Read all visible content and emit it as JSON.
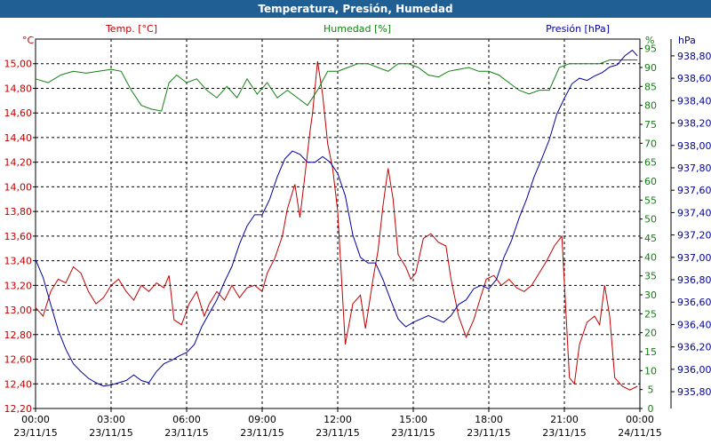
{
  "window_title": "Temperatura, Presión, Humedad",
  "colors": {
    "title_bar": "#1f5f94",
    "temperature": "#c00000",
    "humidity": "#108010",
    "pressure": "#0000a0"
  },
  "chart_data": {
    "type": "line",
    "title": "Temperatura, Presión, Humedad",
    "grid": true,
    "grid_style": "dashed",
    "x_ticks": [
      {
        "time": "00:00",
        "date": "23/11/15"
      },
      {
        "time": "03:00",
        "date": "23/11/15"
      },
      {
        "time": "06:00",
        "date": "23/11/15"
      },
      {
        "time": "09:00",
        "date": "23/11/15"
      },
      {
        "time": "12:00",
        "date": "23/11/15"
      },
      {
        "time": "15:00",
        "date": "23/11/15"
      },
      {
        "time": "18:00",
        "date": "23/11/15"
      },
      {
        "time": "21:00",
        "date": "23/11/15"
      },
      {
        "time": "00:00",
        "date": "24/11/15"
      }
    ],
    "x_range_hours": [
      0,
      24
    ],
    "axes": {
      "left": {
        "unit": "°C",
        "range": [
          12.2,
          15.2
        ],
        "ticks": [
          "12,20",
          "12,40",
          "12,60",
          "12,80",
          "13,00",
          "13,20",
          "13,40",
          "13,60",
          "13,80",
          "14,00",
          "14,20",
          "14,40",
          "14,60",
          "14,80",
          "15,00"
        ]
      },
      "right1": {
        "unit": "%",
        "range": [
          0,
          97.5
        ],
        "ticks": [
          "0",
          "5",
          "10",
          "15",
          "20",
          "25",
          "30",
          "35",
          "40",
          "45",
          "50",
          "55",
          "60",
          "65",
          "70",
          "75",
          "80",
          "85",
          "90",
          "95"
        ]
      },
      "right2": {
        "unit": "hPa",
        "range": [
          935.65,
          938.95
        ],
        "ticks": [
          "935,80",
          "936,00",
          "936,20",
          "936,40",
          "936,60",
          "936,80",
          "937,00",
          "937,20",
          "937,40",
          "937,60",
          "937,80",
          "938,00",
          "938,20",
          "938,40",
          "938,60",
          "938,80"
        ]
      }
    },
    "series": [
      {
        "name": "Temp. [°C]",
        "axis": "left",
        "color": "#c00000",
        "points": [
          [
            0,
            13.02
          ],
          [
            0.3,
            12.95
          ],
          [
            0.6,
            13.15
          ],
          [
            0.9,
            13.25
          ],
          [
            1.2,
            13.22
          ],
          [
            1.5,
            13.35
          ],
          [
            1.8,
            13.3
          ],
          [
            2.1,
            13.15
          ],
          [
            2.4,
            13.05
          ],
          [
            2.7,
            13.1
          ],
          [
            3.0,
            13.2
          ],
          [
            3.3,
            13.25
          ],
          [
            3.6,
            13.15
          ],
          [
            3.9,
            13.08
          ],
          [
            4.2,
            13.2
          ],
          [
            4.5,
            13.15
          ],
          [
            4.8,
            13.22
          ],
          [
            5.1,
            13.18
          ],
          [
            5.3,
            13.28
          ],
          [
            5.5,
            12.92
          ],
          [
            5.8,
            12.88
          ],
          [
            6.1,
            13.05
          ],
          [
            6.4,
            13.15
          ],
          [
            6.7,
            12.95
          ],
          [
            6.9,
            13.05
          ],
          [
            7.2,
            13.15
          ],
          [
            7.5,
            13.08
          ],
          [
            7.8,
            13.2
          ],
          [
            8.1,
            13.1
          ],
          [
            8.4,
            13.18
          ],
          [
            8.7,
            13.2
          ],
          [
            9.0,
            13.15
          ],
          [
            9.2,
            13.3
          ],
          [
            9.5,
            13.42
          ],
          [
            9.8,
            13.6
          ],
          [
            10.0,
            13.82
          ],
          [
            10.3,
            14.02
          ],
          [
            10.5,
            13.75
          ],
          [
            10.7,
            14.1
          ],
          [
            10.9,
            14.45
          ],
          [
            11.0,
            14.6
          ],
          [
            11.2,
            15.02
          ],
          [
            11.4,
            14.75
          ],
          [
            11.6,
            14.35
          ],
          [
            11.8,
            14.15
          ],
          [
            12.0,
            13.8
          ],
          [
            12.3,
            12.72
          ],
          [
            12.6,
            13.05
          ],
          [
            12.9,
            13.12
          ],
          [
            13.1,
            12.85
          ],
          [
            13.4,
            13.25
          ],
          [
            13.6,
            13.48
          ],
          [
            13.8,
            13.85
          ],
          [
            14.0,
            14.15
          ],
          [
            14.2,
            13.9
          ],
          [
            14.4,
            13.45
          ],
          [
            14.7,
            13.35
          ],
          [
            14.9,
            13.25
          ],
          [
            15.1,
            13.3
          ],
          [
            15.4,
            13.58
          ],
          [
            15.7,
            13.62
          ],
          [
            16.0,
            13.55
          ],
          [
            16.3,
            13.52
          ],
          [
            16.5,
            13.25
          ],
          [
            16.8,
            12.95
          ],
          [
            17.1,
            12.78
          ],
          [
            17.4,
            12.92
          ],
          [
            17.7,
            13.12
          ],
          [
            17.9,
            13.25
          ],
          [
            18.2,
            13.28
          ],
          [
            18.5,
            13.2
          ],
          [
            18.8,
            13.25
          ],
          [
            19.1,
            13.18
          ],
          [
            19.4,
            13.15
          ],
          [
            19.7,
            13.2
          ],
          [
            20.0,
            13.3
          ],
          [
            20.3,
            13.4
          ],
          [
            20.6,
            13.52
          ],
          [
            20.9,
            13.6
          ],
          [
            21.2,
            12.45
          ],
          [
            21.4,
            12.4
          ],
          [
            21.6,
            12.72
          ],
          [
            21.9,
            12.9
          ],
          [
            22.2,
            12.95
          ],
          [
            22.4,
            12.88
          ],
          [
            22.6,
            13.2
          ],
          [
            22.8,
            12.95
          ],
          [
            23.0,
            12.45
          ],
          [
            23.3,
            12.38
          ],
          [
            23.6,
            12.35
          ],
          [
            23.9,
            12.38
          ]
        ]
      },
      {
        "name": "Humedad [%]",
        "axis": "right1",
        "color": "#108010",
        "points": [
          [
            0,
            87
          ],
          [
            0.5,
            86
          ],
          [
            1.0,
            88
          ],
          [
            1.5,
            89
          ],
          [
            2.0,
            88.5
          ],
          [
            2.5,
            89
          ],
          [
            3.0,
            89.5
          ],
          [
            3.4,
            89
          ],
          [
            3.8,
            84
          ],
          [
            4.2,
            80
          ],
          [
            4.6,
            79
          ],
          [
            5.0,
            78.5
          ],
          [
            5.3,
            86
          ],
          [
            5.6,
            88
          ],
          [
            6.0,
            86
          ],
          [
            6.4,
            87
          ],
          [
            6.8,
            84
          ],
          [
            7.2,
            82
          ],
          [
            7.6,
            85
          ],
          [
            8.0,
            82
          ],
          [
            8.4,
            87
          ],
          [
            8.8,
            83
          ],
          [
            9.2,
            86
          ],
          [
            9.6,
            82
          ],
          [
            10.0,
            84
          ],
          [
            10.4,
            82
          ],
          [
            10.8,
            80
          ],
          [
            11.2,
            84
          ],
          [
            11.6,
            89
          ],
          [
            12.0,
            89
          ],
          [
            12.4,
            90
          ],
          [
            12.8,
            91
          ],
          [
            13.2,
            91
          ],
          [
            13.6,
            90
          ],
          [
            14.0,
            89
          ],
          [
            14.4,
            91
          ],
          [
            14.8,
            91
          ],
          [
            15.2,
            90
          ],
          [
            15.6,
            88
          ],
          [
            16.0,
            87.5
          ],
          [
            16.4,
            89
          ],
          [
            16.8,
            89.5
          ],
          [
            17.2,
            90
          ],
          [
            17.6,
            89
          ],
          [
            18.0,
            89
          ],
          [
            18.4,
            88
          ],
          [
            18.8,
            86
          ],
          [
            19.2,
            84
          ],
          [
            19.6,
            83
          ],
          [
            20.0,
            84
          ],
          [
            20.4,
            84
          ],
          [
            20.8,
            90
          ],
          [
            21.2,
            91
          ],
          [
            21.6,
            91
          ],
          [
            22.0,
            91
          ],
          [
            22.4,
            91
          ],
          [
            22.8,
            92
          ],
          [
            23.2,
            92
          ],
          [
            23.6,
            92
          ],
          [
            23.9,
            92
          ]
        ]
      },
      {
        "name": "Presión [hPa]",
        "axis": "right2",
        "color": "#0000a0",
        "points": [
          [
            0,
            936.98
          ],
          [
            0.3,
            936.82
          ],
          [
            0.6,
            936.58
          ],
          [
            0.9,
            936.35
          ],
          [
            1.2,
            936.18
          ],
          [
            1.5,
            936.05
          ],
          [
            1.8,
            935.98
          ],
          [
            2.1,
            935.92
          ],
          [
            2.4,
            935.88
          ],
          [
            2.7,
            935.85
          ],
          [
            3.0,
            935.86
          ],
          [
            3.3,
            935.88
          ],
          [
            3.6,
            935.9
          ],
          [
            3.9,
            935.95
          ],
          [
            4.2,
            935.9
          ],
          [
            4.5,
            935.88
          ],
          [
            4.8,
            935.98
          ],
          [
            5.1,
            936.05
          ],
          [
            5.4,
            936.08
          ],
          [
            5.7,
            936.12
          ],
          [
            6.0,
            936.15
          ],
          [
            6.3,
            936.22
          ],
          [
            6.6,
            936.38
          ],
          [
            6.9,
            936.5
          ],
          [
            7.2,
            936.62
          ],
          [
            7.5,
            936.78
          ],
          [
            7.8,
            936.92
          ],
          [
            8.1,
            937.12
          ],
          [
            8.4,
            937.28
          ],
          [
            8.7,
            937.38
          ],
          [
            9.0,
            937.38
          ],
          [
            9.3,
            937.52
          ],
          [
            9.6,
            937.72
          ],
          [
            9.9,
            937.88
          ],
          [
            10.2,
            937.95
          ],
          [
            10.5,
            937.92
          ],
          [
            10.8,
            937.85
          ],
          [
            11.1,
            937.85
          ],
          [
            11.4,
            937.9
          ],
          [
            11.7,
            937.85
          ],
          [
            12.0,
            937.75
          ],
          [
            12.3,
            937.55
          ],
          [
            12.6,
            937.2
          ],
          [
            12.9,
            937.0
          ],
          [
            13.2,
            936.95
          ],
          [
            13.5,
            936.95
          ],
          [
            13.8,
            936.8
          ],
          [
            14.1,
            936.62
          ],
          [
            14.4,
            936.45
          ],
          [
            14.7,
            936.38
          ],
          [
            15.0,
            936.42
          ],
          [
            15.3,
            936.45
          ],
          [
            15.6,
            936.48
          ],
          [
            15.9,
            936.45
          ],
          [
            16.2,
            936.42
          ],
          [
            16.5,
            936.48
          ],
          [
            16.8,
            936.58
          ],
          [
            17.1,
            936.62
          ],
          [
            17.4,
            936.72
          ],
          [
            17.7,
            936.75
          ],
          [
            18.0,
            936.72
          ],
          [
            18.3,
            936.8
          ],
          [
            18.6,
            937.0
          ],
          [
            18.9,
            937.15
          ],
          [
            19.2,
            937.35
          ],
          [
            19.5,
            937.52
          ],
          [
            19.8,
            937.72
          ],
          [
            20.1,
            937.88
          ],
          [
            20.4,
            938.05
          ],
          [
            20.7,
            938.28
          ],
          [
            21.0,
            938.42
          ],
          [
            21.3,
            938.55
          ],
          [
            21.6,
            938.6
          ],
          [
            21.9,
            938.58
          ],
          [
            22.2,
            938.62
          ],
          [
            22.5,
            938.65
          ],
          [
            22.8,
            938.7
          ],
          [
            23.1,
            938.72
          ],
          [
            23.4,
            938.8
          ],
          [
            23.7,
            938.85
          ],
          [
            23.9,
            938.8
          ]
        ]
      }
    ]
  }
}
